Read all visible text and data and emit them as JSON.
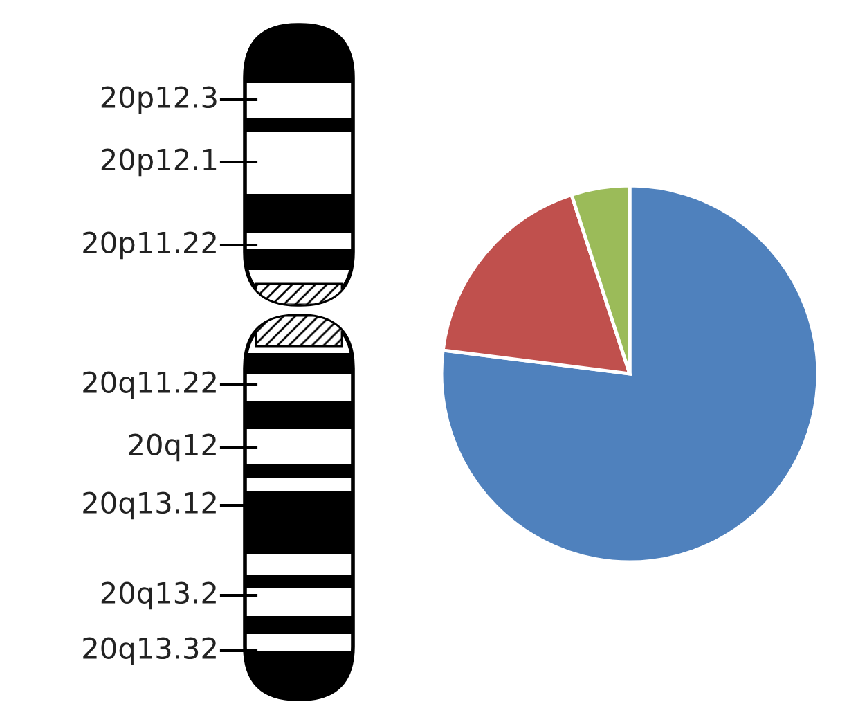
{
  "chart_data": [
    {
      "type": "other",
      "annotations": [
        "20p12.3",
        "20p12.1",
        "20p11.22",
        "20q11.22",
        "20q12",
        "20q13.12",
        "20q13.2",
        "20q13.32"
      ]
    },
    {
      "type": "pie",
      "categories": [
        null,
        null,
        null
      ],
      "values": [
        77,
        18,
        5
      ],
      "colors": [
        "#4f81bd",
        "#c0504d",
        "#9bbb59"
      ]
    }
  ]
}
